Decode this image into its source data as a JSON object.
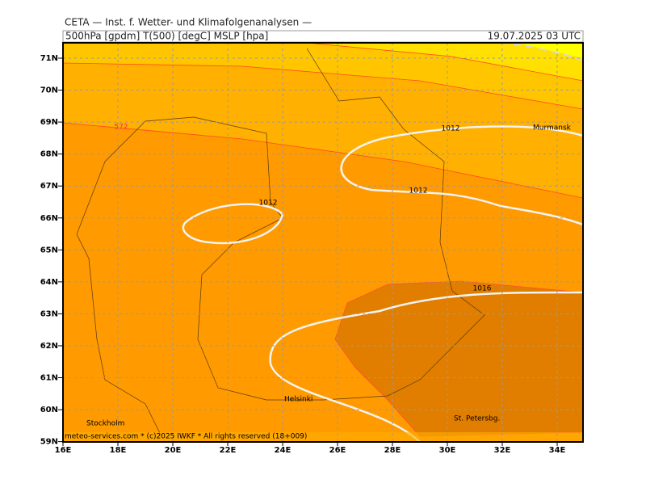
{
  "header": {
    "title": "CETA — Inst. f. Wetter- und Klimafolgenanalysen —",
    "left": "500hPa [gpdm] T(500) [degC] MSLP [hpa]",
    "right": "19.07.2025 03 UTC"
  },
  "map": {
    "lat_labels": [
      "71N",
      "70N",
      "69N",
      "68N",
      "67N",
      "66N",
      "65N",
      "64N",
      "63N",
      "62N",
      "61N",
      "60N",
      "59N"
    ],
    "lon_labels": [
      "16E",
      "18E",
      "20E",
      "22E",
      "24E",
      "26E",
      "28E",
      "30E",
      "32E",
      "34E"
    ],
    "isobar_labels": [
      "1012",
      "1012",
      "1012",
      "1016"
    ],
    "geopotential_label": "572",
    "places": [
      "Murmansk",
      "Helsinki",
      "St. Petersbg.",
      "Stockholm"
    ]
  },
  "footer": "meteo-services.com * (c)2025 IWKF * All rights reserved (18+009)"
}
